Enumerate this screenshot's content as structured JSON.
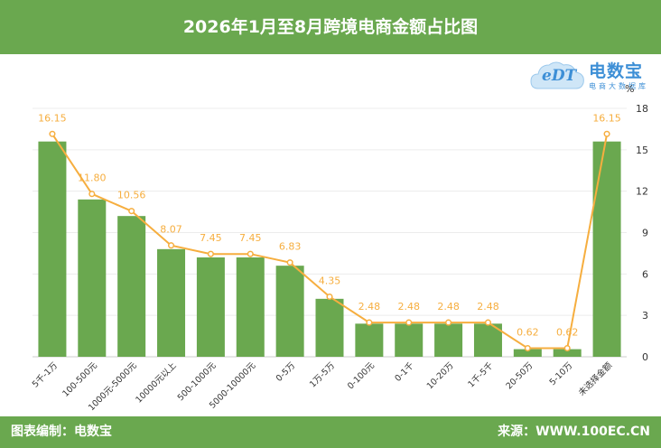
{
  "header": {
    "title": "2026年1月至8月跨境电商金额占比图"
  },
  "footer": {
    "left": "图表编制：电数宝",
    "right": "来源：WWW.100EC.CN"
  },
  "logo": {
    "mark": "eDT",
    "name": "电数宝",
    "tagline": "电商大数据库"
  },
  "colors": {
    "header_bg": "#6aa84f",
    "bar": "#6aa84f",
    "line": "#f6ae3f",
    "label": "#f6ae3f"
  },
  "chart_data": {
    "type": "bar",
    "categories": [
      "5千-1万",
      "100-500元",
      "1000元-5000元",
      "10000元以上",
      "500-1000元",
      "5000-10000元",
      "0-5万",
      "1万-5万",
      "0-100元",
      "0-1千",
      "10-20万",
      "1千-5千",
      "20-50万",
      "5-10万",
      "未选择金额"
    ],
    "series": [
      {
        "type": "bar",
        "values": [
          15.6,
          11.4,
          10.2,
          7.8,
          7.2,
          7.2,
          6.6,
          4.2,
          2.4,
          2.4,
          2.4,
          2.4,
          0.55,
          0.55,
          15.6
        ]
      },
      {
        "type": "line",
        "values": [
          16.15,
          11.8,
          10.56,
          8.07,
          7.45,
          7.45,
          6.83,
          4.35,
          2.48,
          2.48,
          2.48,
          2.48,
          0.62,
          0.62,
          16.15
        ]
      }
    ],
    "data_labels": [
      "16.15",
      "11.80",
      "10.56",
      "8.07",
      "7.45",
      "7.45",
      "6.83",
      "4.35",
      "2.48",
      "2.48",
      "2.48",
      "2.48",
      "0.62",
      "0.62",
      "16.15"
    ],
    "y_axis": {
      "position": "right",
      "unit": "%",
      "ylim": [
        0,
        18
      ],
      "ticks": [
        0,
        3,
        6,
        9,
        12,
        15,
        18
      ]
    },
    "grid": true
  }
}
